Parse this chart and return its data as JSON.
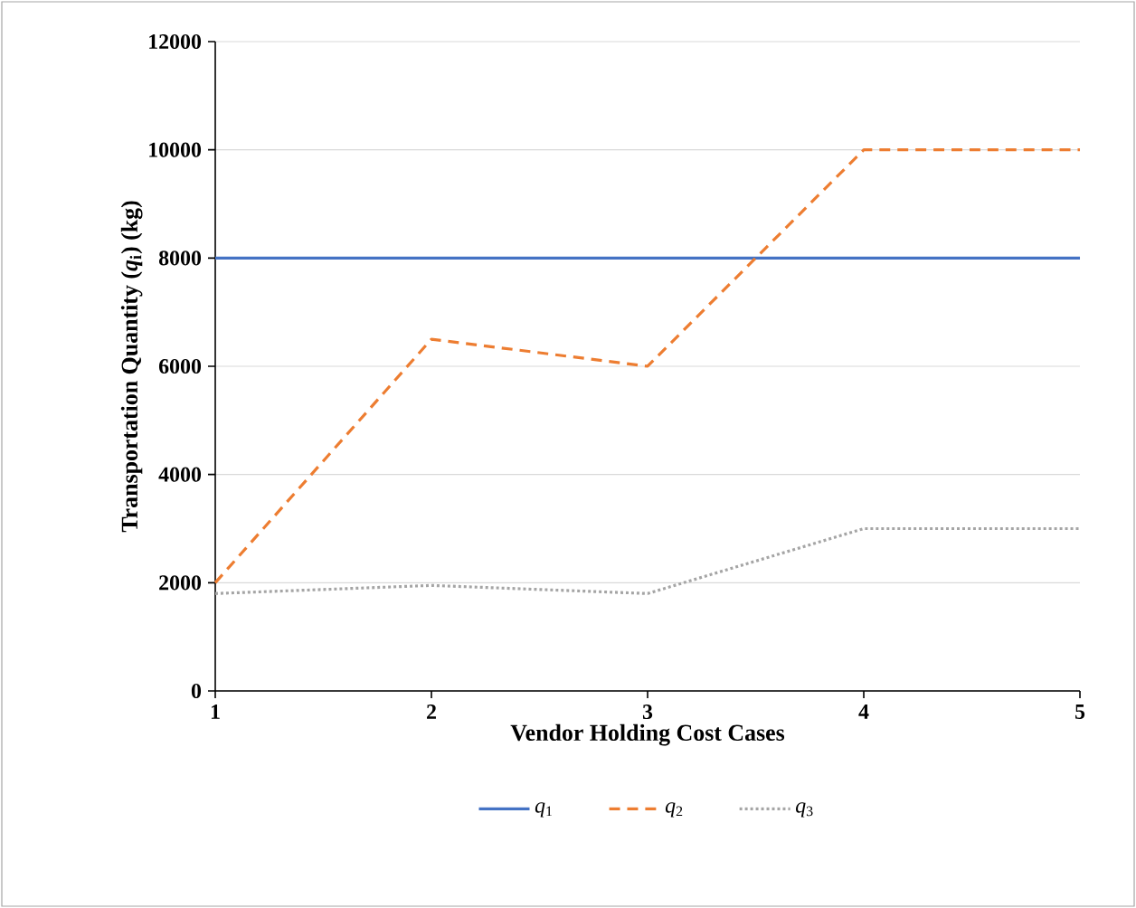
{
  "chart_data": {
    "type": "line",
    "xlabel": "Vendor Holding Cost Cases",
    "ylabel": "Transportation  Quantity (*q*$_{i}$) (kg)",
    "categories": [
      "1",
      "2",
      "3",
      "4",
      "5"
    ],
    "series": [
      {
        "name": "*q*$_{1}$",
        "color": "#4472c4",
        "line_style": "solid",
        "values": [
          8000,
          8000,
          8000,
          8000,
          8000
        ]
      },
      {
        "name": "*q*$_{2}$",
        "color": "#ed7d31",
        "line_style": "dashed",
        "values": [
          2000,
          6500,
          6000,
          10000,
          10000
        ]
      },
      {
        "name": "*q*$_{3}$",
        "color": "#a5a5a5",
        "line_style": "dotted",
        "values": [
          1800,
          1950,
          1800,
          3000,
          3000
        ]
      }
    ],
    "ylim": [
      0,
      12000
    ],
    "yticks": [
      0,
      2000,
      4000,
      6000,
      8000,
      10000,
      12000
    ],
    "grid": "y",
    "legend": "bottom",
    "marker": "none"
  }
}
